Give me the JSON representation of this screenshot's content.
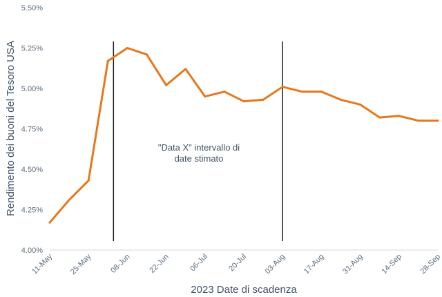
{
  "chart_data": {
    "type": "line",
    "title": "",
    "xlabel": "2023 Date di scadenza",
    "ylabel": "Rendimento dei buoni del Tesoro USA",
    "ylim": [
      4.0,
      5.5
    ],
    "y_ticks": [
      "4.00%",
      "4.25%",
      "4.50%",
      "4.75%",
      "5.00%",
      "5.25%",
      "5.50%"
    ],
    "y_tick_values": [
      4.0,
      4.25,
      4.5,
      4.75,
      5.0,
      5.25,
      5.5
    ],
    "x_ticks": [
      "11-May",
      "25-May",
      "08-Jun",
      "22-Jun",
      "06-Jul",
      "20-Jul",
      "03-Aug",
      "17-Aug",
      "31-Aug",
      "14-Sep",
      "28-Sep"
    ],
    "x": [
      "2023-05-11",
      "2023-05-18",
      "2023-05-25",
      "2023-06-01",
      "2023-06-08",
      "2023-06-15",
      "2023-06-22",
      "2023-06-29",
      "2023-07-06",
      "2023-07-13",
      "2023-07-20",
      "2023-07-27",
      "2023-08-03",
      "2023-08-10",
      "2023-08-17",
      "2023-08-24",
      "2023-08-31",
      "2023-09-07",
      "2023-09-14",
      "2023-09-21",
      "2023-09-28"
    ],
    "series": [
      {
        "values": [
          4.17,
          4.31,
          4.43,
          5.17,
          5.25,
          5.21,
          5.02,
          5.12,
          4.95,
          4.98,
          4.92,
          4.93,
          5.01,
          4.98,
          4.98,
          4.93,
          4.9,
          4.82,
          4.83,
          4.8,
          4.8
        ],
        "color": "#e8771a"
      }
    ],
    "vertical_lines": [
      "2023-06-03",
      "2023-08-03"
    ],
    "annotation": {
      "line1": "\"Data X\" intervallo di",
      "line2": "date stimato"
    },
    "grid": false,
    "legend": "none"
  }
}
